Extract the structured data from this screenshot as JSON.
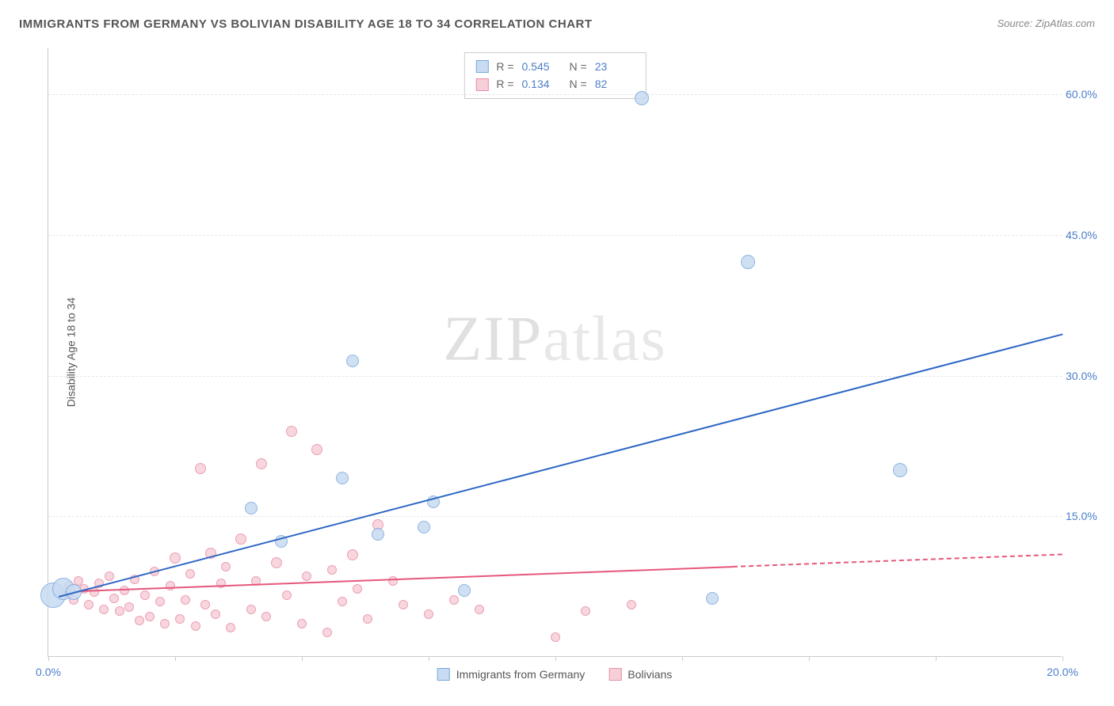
{
  "title": "IMMIGRANTS FROM GERMANY VS BOLIVIAN DISABILITY AGE 18 TO 34 CORRELATION CHART",
  "source": "Source: ZipAtlas.com",
  "ylabel": "Disability Age 18 to 34",
  "watermark_a": "ZIP",
  "watermark_b": "atlas",
  "chart": {
    "type": "scatter",
    "xlim": [
      0,
      20
    ],
    "ylim": [
      0,
      65
    ],
    "xticks": [
      0,
      2.5,
      5,
      7.5,
      10,
      12.5,
      15,
      17.5,
      20
    ],
    "xtick_labels": {
      "0": "0.0%",
      "20": "20.0%"
    },
    "yticks": [
      15,
      30,
      45,
      60
    ],
    "ytick_labels": {
      "15": "15.0%",
      "30": "30.0%",
      "45": "45.0%",
      "60": "60.0%"
    },
    "background_color": "#ffffff",
    "grid_color": "#e5e5e5",
    "series": [
      {
        "name": "Immigrants from Germany",
        "fill": "#c8dbf2",
        "stroke": "#7ba8dc",
        "r_value": "0.545",
        "n_value": "23",
        "trend": {
          "x1": 0.2,
          "y1": 6.5,
          "x2": 20,
          "y2": 34.5,
          "color": "#2d66c4",
          "dash_from_x": null
        },
        "points": [
          {
            "x": 0.1,
            "y": 6.5,
            "r": 16
          },
          {
            "x": 0.3,
            "y": 7.2,
            "r": 14
          },
          {
            "x": 0.5,
            "y": 6.8,
            "r": 10
          },
          {
            "x": 4.0,
            "y": 15.8,
            "r": 8
          },
          {
            "x": 4.6,
            "y": 12.2,
            "r": 8
          },
          {
            "x": 5.8,
            "y": 19.0,
            "r": 8
          },
          {
            "x": 6.5,
            "y": 13.0,
            "r": 8
          },
          {
            "x": 6.0,
            "y": 31.5,
            "r": 8
          },
          {
            "x": 7.4,
            "y": 13.8,
            "r": 8
          },
          {
            "x": 7.6,
            "y": 16.5,
            "r": 8
          },
          {
            "x": 8.2,
            "y": 7.0,
            "r": 8
          },
          {
            "x": 11.7,
            "y": 59.5,
            "r": 9
          },
          {
            "x": 13.1,
            "y": 6.2,
            "r": 8
          },
          {
            "x": 13.8,
            "y": 42.0,
            "r": 9
          },
          {
            "x": 16.8,
            "y": 19.8,
            "r": 9
          }
        ]
      },
      {
        "name": "Bolivians",
        "fill": "#f7cfd9",
        "stroke": "#e98fa8",
        "r_value": "0.134",
        "n_value": "82",
        "trend": {
          "x1": 0.2,
          "y1": 7.0,
          "x2": 20,
          "y2": 11.0,
          "color": "#e6577c",
          "dash_from_x": 13.5
        },
        "points": [
          {
            "x": 0.3,
            "y": 6.5,
            "r": 6
          },
          {
            "x": 0.4,
            "y": 7.5,
            "r": 6
          },
          {
            "x": 0.5,
            "y": 6.0,
            "r": 6
          },
          {
            "x": 0.6,
            "y": 8.0,
            "r": 6
          },
          {
            "x": 0.7,
            "y": 7.2,
            "r": 6
          },
          {
            "x": 0.8,
            "y": 5.5,
            "r": 6
          },
          {
            "x": 0.9,
            "y": 6.8,
            "r": 6
          },
          {
            "x": 1.0,
            "y": 7.8,
            "r": 6
          },
          {
            "x": 1.1,
            "y": 5.0,
            "r": 6
          },
          {
            "x": 1.2,
            "y": 8.5,
            "r": 6
          },
          {
            "x": 1.3,
            "y": 6.2,
            "r": 6
          },
          {
            "x": 1.4,
            "y": 4.8,
            "r": 6
          },
          {
            "x": 1.5,
            "y": 7.0,
            "r": 6
          },
          {
            "x": 1.6,
            "y": 5.2,
            "r": 6
          },
          {
            "x": 1.7,
            "y": 8.2,
            "r": 6
          },
          {
            "x": 1.8,
            "y": 3.8,
            "r": 6
          },
          {
            "x": 1.9,
            "y": 6.5,
            "r": 6
          },
          {
            "x": 2.0,
            "y": 4.2,
            "r": 6
          },
          {
            "x": 2.1,
            "y": 9.0,
            "r": 6
          },
          {
            "x": 2.2,
            "y": 5.8,
            "r": 6
          },
          {
            "x": 2.3,
            "y": 3.5,
            "r": 6
          },
          {
            "x": 2.4,
            "y": 7.5,
            "r": 6
          },
          {
            "x": 2.5,
            "y": 10.5,
            "r": 7
          },
          {
            "x": 2.6,
            "y": 4.0,
            "r": 6
          },
          {
            "x": 2.7,
            "y": 6.0,
            "r": 6
          },
          {
            "x": 2.8,
            "y": 8.8,
            "r": 6
          },
          {
            "x": 2.9,
            "y": 3.2,
            "r": 6
          },
          {
            "x": 3.0,
            "y": 20.0,
            "r": 7
          },
          {
            "x": 3.1,
            "y": 5.5,
            "r": 6
          },
          {
            "x": 3.2,
            "y": 11.0,
            "r": 7
          },
          {
            "x": 3.3,
            "y": 4.5,
            "r": 6
          },
          {
            "x": 3.4,
            "y": 7.8,
            "r": 6
          },
          {
            "x": 3.5,
            "y": 9.5,
            "r": 6
          },
          {
            "x": 3.6,
            "y": 3.0,
            "r": 6
          },
          {
            "x": 3.8,
            "y": 12.5,
            "r": 7
          },
          {
            "x": 4.0,
            "y": 5.0,
            "r": 6
          },
          {
            "x": 4.1,
            "y": 8.0,
            "r": 6
          },
          {
            "x": 4.2,
            "y": 20.5,
            "r": 7
          },
          {
            "x": 4.3,
            "y": 4.2,
            "r": 6
          },
          {
            "x": 4.5,
            "y": 10.0,
            "r": 7
          },
          {
            "x": 4.7,
            "y": 6.5,
            "r": 6
          },
          {
            "x": 4.8,
            "y": 24.0,
            "r": 7
          },
          {
            "x": 5.0,
            "y": 3.5,
            "r": 6
          },
          {
            "x": 5.1,
            "y": 8.5,
            "r": 6
          },
          {
            "x": 5.3,
            "y": 22.0,
            "r": 7
          },
          {
            "x": 5.5,
            "y": 2.5,
            "r": 6
          },
          {
            "x": 5.6,
            "y": 9.2,
            "r": 6
          },
          {
            "x": 5.8,
            "y": 5.8,
            "r": 6
          },
          {
            "x": 6.0,
            "y": 10.8,
            "r": 7
          },
          {
            "x": 6.1,
            "y": 7.2,
            "r": 6
          },
          {
            "x": 6.3,
            "y": 4.0,
            "r": 6
          },
          {
            "x": 6.5,
            "y": 14.0,
            "r": 7
          },
          {
            "x": 6.8,
            "y": 8.0,
            "r": 6
          },
          {
            "x": 7.0,
            "y": 5.5,
            "r": 6
          },
          {
            "x": 7.5,
            "y": 4.5,
            "r": 6
          },
          {
            "x": 8.0,
            "y": 6.0,
            "r": 6
          },
          {
            "x": 8.5,
            "y": 5.0,
            "r": 6
          },
          {
            "x": 10.0,
            "y": 2.0,
            "r": 6
          },
          {
            "x": 10.6,
            "y": 4.8,
            "r": 6
          },
          {
            "x": 11.5,
            "y": 5.5,
            "r": 6
          }
        ]
      }
    ]
  },
  "legend": {
    "series1_label": "Immigrants from Germany",
    "series2_label": "Bolivians"
  }
}
